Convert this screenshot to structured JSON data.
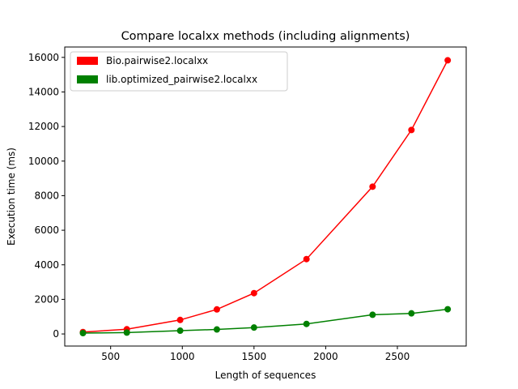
{
  "chart_data": {
    "type": "line",
    "title": "Compare localxx methods (including alignments)",
    "xlabel": "Length of sequences",
    "ylabel": "Execution time (ms)",
    "xlim": [
      180,
      2980
    ],
    "ylim": [
      -700,
      16600
    ],
    "x_ticks": [
      500,
      1000,
      1500,
      2000,
      2500
    ],
    "y_ticks": [
      0,
      2000,
      4000,
      6000,
      8000,
      10000,
      12000,
      14000,
      16000
    ],
    "grid": false,
    "legend_position": "upper left",
    "series": [
      {
        "name": "Bio.pairwise2.localxx",
        "color": "#ff0000",
        "x": [
          307,
          613,
          985,
          1241,
          1500,
          1866,
          2327,
          2598,
          2851
        ],
        "y": [
          110,
          270,
          810,
          1420,
          2360,
          4330,
          8520,
          11800,
          15830
        ]
      },
      {
        "name": "lib.optimized_pairwise2.localxx",
        "color": "#008000",
        "x": [
          307,
          613,
          985,
          1241,
          1500,
          1866,
          2327,
          2598,
          2851
        ],
        "y": [
          50,
          80,
          190,
          260,
          370,
          580,
          1110,
          1190,
          1430
        ]
      }
    ]
  }
}
